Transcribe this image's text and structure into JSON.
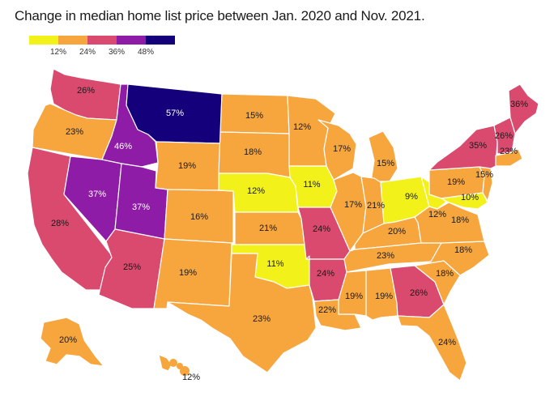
{
  "title": "Change in median home list price between Jan. 2020 and Nov. 2021.",
  "legend": {
    "colors": [
      "#f2f21a",
      "#f7a53d",
      "#d94a6e",
      "#8e1ca6",
      "#13007a"
    ],
    "ticks": [
      "12%",
      "24%",
      "36%",
      "48%"
    ]
  },
  "states": [
    {
      "id": "WA",
      "value": "26%",
      "color": "#d94a6e"
    },
    {
      "id": "OR",
      "value": "23%",
      "color": "#f7a53d"
    },
    {
      "id": "CA",
      "value": "28%",
      "color": "#d94a6e"
    },
    {
      "id": "ID",
      "value": "46%",
      "color": "#8e1ca6"
    },
    {
      "id": "NV",
      "value": "37%",
      "color": "#8e1ca6"
    },
    {
      "id": "UT",
      "value": "37%",
      "color": "#8e1ca6"
    },
    {
      "id": "AZ",
      "value": "25%",
      "color": "#d94a6e"
    },
    {
      "id": "MT",
      "value": "57%",
      "color": "#13007a"
    },
    {
      "id": "WY",
      "value": "19%",
      "color": "#f7a53d"
    },
    {
      "id": "CO",
      "value": "16%",
      "color": "#f7a53d"
    },
    {
      "id": "NM",
      "value": "19%",
      "color": "#f7a53d"
    },
    {
      "id": "ND",
      "value": "15%",
      "color": "#f7a53d"
    },
    {
      "id": "SD",
      "value": "18%",
      "color": "#f7a53d"
    },
    {
      "id": "NE",
      "value": "12%",
      "color": "#f2f21a"
    },
    {
      "id": "KS",
      "value": "21%",
      "color": "#f7a53d"
    },
    {
      "id": "OK",
      "value": "11%",
      "color": "#f2f21a"
    },
    {
      "id": "TX",
      "value": "23%",
      "color": "#f7a53d"
    },
    {
      "id": "MN",
      "value": "12%",
      "color": "#f7a53d"
    },
    {
      "id": "IA",
      "value": "11%",
      "color": "#f2f21a"
    },
    {
      "id": "MO",
      "value": "24%",
      "color": "#d94a6e"
    },
    {
      "id": "AR",
      "value": "24%",
      "color": "#d94a6e"
    },
    {
      "id": "LA",
      "value": "22%",
      "color": "#f7a53d"
    },
    {
      "id": "WI",
      "value": "17%",
      "color": "#f7a53d"
    },
    {
      "id": "IL",
      "value": "17%",
      "color": "#f7a53d"
    },
    {
      "id": "MI",
      "value": "15%",
      "color": "#f7a53d"
    },
    {
      "id": "IN",
      "value": "21%",
      "color": "#f7a53d"
    },
    {
      "id": "OH",
      "value": "9%",
      "color": "#f2f21a"
    },
    {
      "id": "KY",
      "value": "20%",
      "color": "#f7a53d"
    },
    {
      "id": "TN",
      "value": "23%",
      "color": "#f7a53d"
    },
    {
      "id": "MS",
      "value": "19%",
      "color": "#f7a53d"
    },
    {
      "id": "AL",
      "value": "19%",
      "color": "#f7a53d"
    },
    {
      "id": "GA",
      "value": "26%",
      "color": "#d94a6e"
    },
    {
      "id": "FL",
      "value": "24%",
      "color": "#f7a53d"
    },
    {
      "id": "SC",
      "value": "18%",
      "color": "#f7a53d"
    },
    {
      "id": "NC",
      "value": "18%",
      "color": "#f7a53d"
    },
    {
      "id": "VA",
      "value": "18%",
      "color": "#f7a53d"
    },
    {
      "id": "WV",
      "value": "12%",
      "color": "#f2f21a"
    },
    {
      "id": "PA",
      "value": "19%",
      "color": "#f7a53d"
    },
    {
      "id": "MD",
      "value": "10%",
      "color": "#f2f21a"
    },
    {
      "id": "NJ",
      "value": "15%",
      "color": "#f7a53d"
    },
    {
      "id": "NY",
      "value": "35%",
      "color": "#d94a6e"
    },
    {
      "id": "VT",
      "value": "26%",
      "color": "#d94a6e"
    },
    {
      "id": "MA",
      "value": "23%",
      "color": "#f7a53d"
    },
    {
      "id": "ME",
      "value": "36%",
      "color": "#d94a6e"
    },
    {
      "id": "AK",
      "value": "20%",
      "color": "#f7a53d"
    },
    {
      "id": "HI",
      "value": "12%",
      "color": "#f7a53d"
    }
  ]
}
